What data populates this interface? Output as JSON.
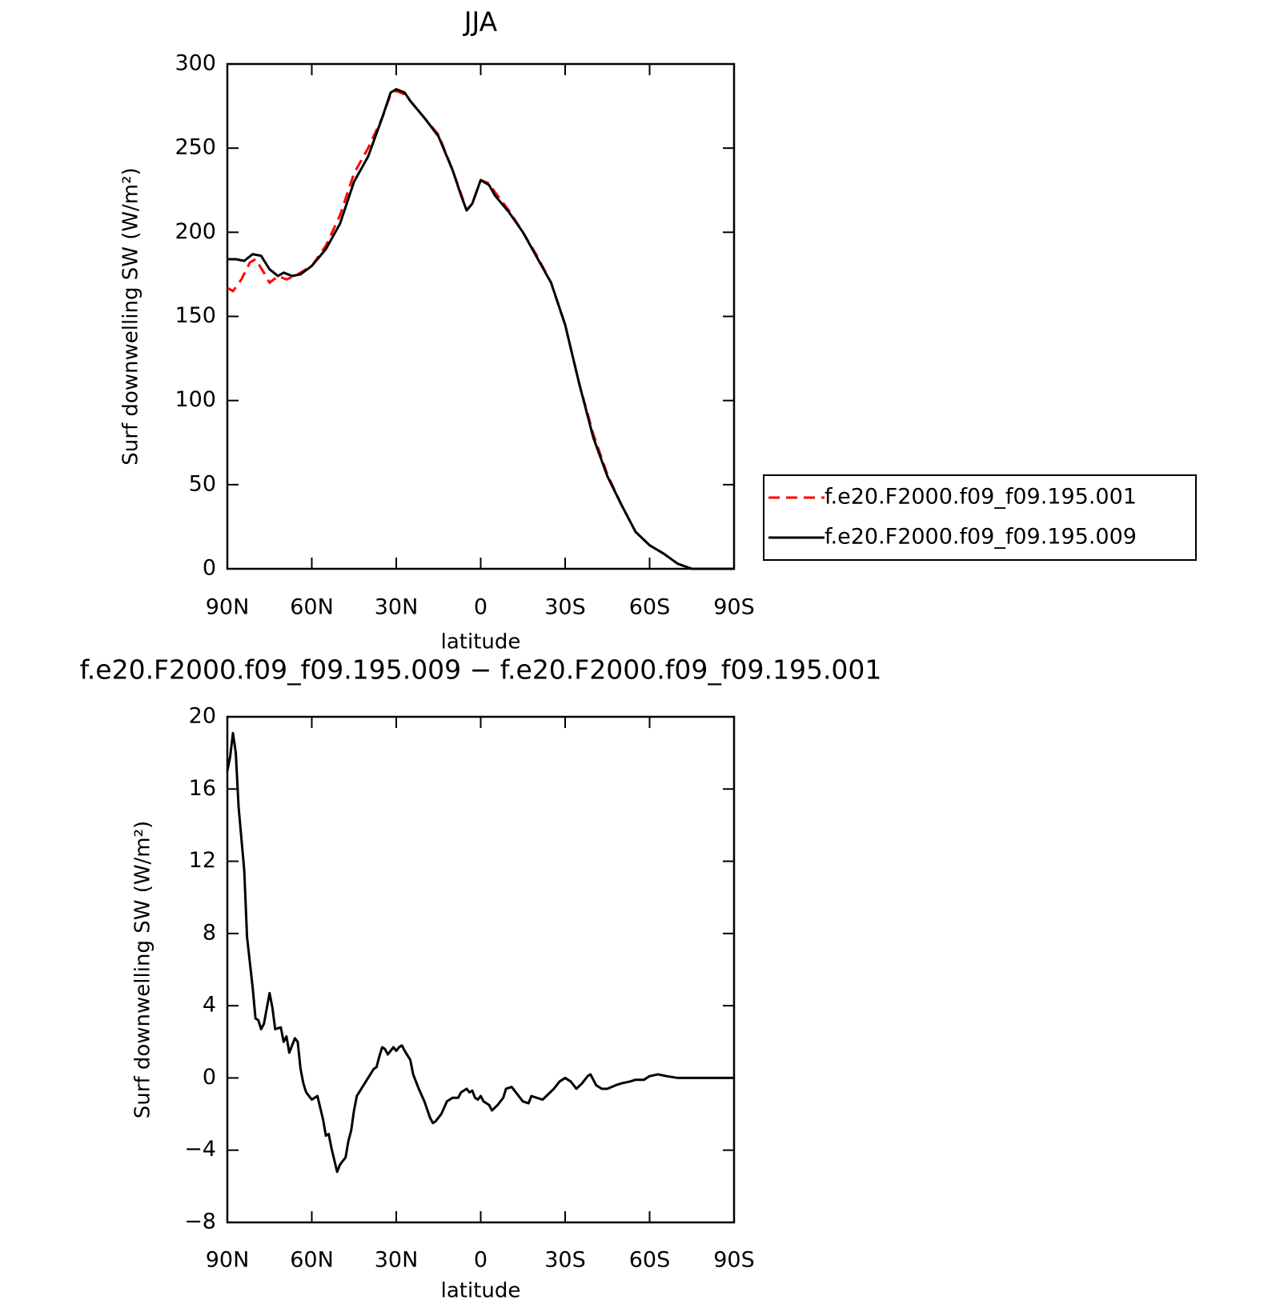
{
  "chart_data": [
    {
      "type": "line",
      "title": "JJA",
      "x_label": "latitude",
      "y_label": "Surf downwelling SW (W/m²)",
      "xlim": [
        90,
        -90
      ],
      "ylim": [
        0,
        300
      ],
      "xticks": [
        {
          "value": 90,
          "label": "90N"
        },
        {
          "value": 60,
          "label": "60N"
        },
        {
          "value": 30,
          "label": "30N"
        },
        0,
        {
          "value": -30,
          "label": "30S"
        },
        {
          "value": -60,
          "label": "60S"
        },
        {
          "value": -90,
          "label": "90S"
        }
      ],
      "yticks": [
        0,
        50,
        100,
        150,
        200,
        250,
        300
      ],
      "legend": "right",
      "series": [
        {
          "name": "f.e20.F2000.f09_f09.195.001",
          "color": "#ff0000",
          "line_style": "dashed",
          "x": [
            90,
            88,
            85,
            82,
            80,
            77,
            75,
            72,
            69,
            66,
            63,
            60,
            55,
            50,
            45,
            40,
            35,
            32,
            30,
            27,
            25,
            20,
            15,
            10,
            7,
            5,
            3,
            0,
            -3,
            -5,
            -10,
            -15,
            -20,
            -25,
            -30,
            -35,
            -40,
            -45,
            -50,
            -55,
            -60,
            -65,
            -70,
            -75,
            -80,
            -85,
            -90
          ],
          "values": [
            167,
            165,
            172,
            182,
            184,
            176,
            170,
            174,
            172,
            174,
            177,
            180,
            192,
            210,
            235,
            250,
            268,
            282,
            284,
            282,
            278,
            268,
            258,
            237,
            223,
            213,
            217,
            231,
            229,
            224,
            213,
            200,
            186,
            170,
            145,
            110,
            80,
            56,
            38,
            22,
            14,
            9,
            3,
            0,
            0,
            0,
            0
          ]
        },
        {
          "name": "f.e20.F2000.f09_f09.195.009",
          "color": "#000000",
          "line_style": "solid",
          "x": [
            90,
            87,
            84,
            81,
            78,
            75,
            72,
            70,
            67,
            64,
            60,
            55,
            50,
            45,
            40,
            35,
            32,
            30,
            27,
            25,
            20,
            15,
            10,
            7,
            5,
            3,
            0,
            -3,
            -5,
            -10,
            -15,
            -20,
            -25,
            -30,
            -35,
            -40,
            -45,
            -50,
            -55,
            -60,
            -65,
            -70,
            -75,
            -80,
            -85,
            -90
          ],
          "values": [
            184,
            184,
            183,
            187,
            186,
            178,
            174,
            176,
            174,
            175,
            180,
            190,
            205,
            230,
            245,
            268,
            283,
            285,
            283,
            278,
            268,
            257,
            237,
            222,
            213,
            217,
            231,
            228,
            222,
            212,
            200,
            185,
            170,
            145,
            110,
            78,
            55,
            38,
            22,
            14,
            9,
            3,
            0,
            0,
            0,
            0
          ]
        }
      ]
    },
    {
      "type": "line",
      "title": "f.e20.F2000.f09_f09.195.009 − f.e20.F2000.f09_f09.195.001",
      "x_label": "latitude",
      "y_label": "Surf downwelling SW (W/m²)",
      "xlim": [
        90,
        -90
      ],
      "ylim": [
        -8,
        20
      ],
      "xticks": [
        {
          "value": 90,
          "label": "90N"
        },
        {
          "value": 60,
          "label": "60N"
        },
        {
          "value": 30,
          "label": "30N"
        },
        0,
        {
          "value": -30,
          "label": "30S"
        },
        {
          "value": -60,
          "label": "60S"
        },
        {
          "value": -90,
          "label": "90S"
        }
      ],
      "yticks": [
        {
          "value": -8,
          "label": "−8"
        },
        {
          "value": -4,
          "label": "−4"
        },
        0,
        4,
        8,
        12,
        16,
        20
      ],
      "series": [
        {
          "color": "#000000",
          "line_style": "solid",
          "x": [
            90,
            89,
            88,
            87,
            86,
            84,
            83,
            81,
            80,
            79,
            78,
            77,
            75,
            74,
            73,
            71,
            70,
            69,
            68,
            66,
            65,
            64,
            63,
            62,
            60,
            58,
            56,
            55,
            54,
            53,
            51,
            50,
            48,
            47,
            46,
            45,
            44,
            42,
            40,
            38,
            37,
            36,
            35,
            34,
            33,
            32,
            31,
            30,
            29,
            28,
            27,
            25,
            24,
            22,
            20,
            18,
            17,
            16,
            14,
            12,
            10,
            8,
            7,
            5,
            4,
            3,
            2,
            1,
            0,
            -1,
            -3,
            -4,
            -6,
            -8,
            -9,
            -11,
            -13,
            -15,
            -17,
            -18,
            -20,
            -22,
            -24,
            -26,
            -28,
            -30,
            -32,
            -34,
            -36,
            -38,
            -39,
            -41,
            -43,
            -45,
            -48,
            -50,
            -53,
            -55,
            -58,
            -60,
            -63,
            -66,
            -70,
            -75,
            -80,
            -90
          ],
          "values": [
            17,
            17.8,
            19.1,
            18,
            15,
            11.5,
            7.8,
            5,
            3.3,
            3.2,
            2.7,
            3,
            4.7,
            3.9,
            2.7,
            2.8,
            2,
            2.3,
            1.4,
            2.2,
            2,
            0.5,
            -0.3,
            -0.8,
            -1.2,
            -1.0,
            -2.3,
            -3.2,
            -3.1,
            -3.9,
            -5.2,
            -4.8,
            -4.4,
            -3.5,
            -2.9,
            -1.8,
            -1.0,
            -0.5,
            0,
            0.5,
            0.6,
            1.2,
            1.7,
            1.6,
            1.3,
            1.5,
            1.7,
            1.5,
            1.7,
            1.8,
            1.5,
            1,
            0.2,
            -0.6,
            -1.3,
            -2.2,
            -2.5,
            -2.4,
            -2,
            -1.3,
            -1.1,
            -1.1,
            -0.8,
            -0.6,
            -0.8,
            -0.7,
            -1.1,
            -1.2,
            -1.0,
            -1.3,
            -1.5,
            -1.8,
            -1.5,
            -1.1,
            -0.6,
            -0.5,
            -0.9,
            -1.3,
            -1.4,
            -1.0,
            -1.1,
            -1.2,
            -0.9,
            -0.6,
            -0.2,
            0,
            -0.2,
            -0.6,
            -0.3,
            0.1,
            0.2,
            -0.4,
            -0.6,
            -0.6,
            -0.4,
            -0.3,
            -0.2,
            -0.1,
            -0.1,
            0.1,
            0.2,
            0.1,
            0,
            0,
            0,
            0
          ]
        }
      ]
    }
  ]
}
